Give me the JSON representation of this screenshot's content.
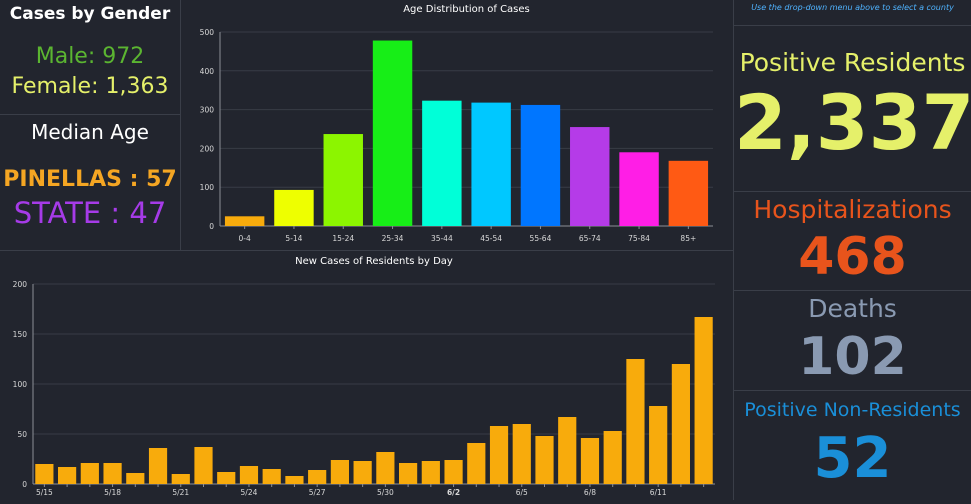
{
  "gender_panel": {
    "title": "Cases by Gender",
    "male_text": "Male: 972",
    "female_text": "Female: 1,363",
    "median_title": "Median Age",
    "pinellas_text": "PINELLAS : 57",
    "state_text": "STATE : 47"
  },
  "kpi": {
    "hint": "Use the drop-down menu above to select a county",
    "positive_label": "Positive Residents",
    "positive_value": "2,337",
    "hosp_label": "Hospitalizations",
    "hosp_value": "468",
    "deaths_label": "Deaths",
    "deaths_value": "102",
    "nonres_label": "Positive Non-Residents",
    "nonres_value": "52"
  },
  "colors": {
    "male": "#5bb531",
    "female": "#e5f06a",
    "pinellas": "#f5a623",
    "state": "#a63be8",
    "positive": "#e5f06a",
    "hosp": "#e8541c",
    "deaths": "#8a9ab2",
    "nonres": "#1a8fd8",
    "bar_daily": "#f8ab0c"
  },
  "chart_data": [
    {
      "type": "bar",
      "title": "Age Distribution of Cases",
      "categories": [
        "0-4",
        "5-14",
        "15-24",
        "25-34",
        "35-44",
        "45-54",
        "55-64",
        "65-74",
        "75-84",
        "85+"
      ],
      "values": [
        25,
        93,
        237,
        478,
        323,
        318,
        312,
        255,
        190,
        168
      ],
      "colors": [
        "#f8ab0c",
        "#eeff00",
        "#8cf500",
        "#17ee17",
        "#00ffd8",
        "#00c8ff",
        "#0076ff",
        "#b53be8",
        "#ff1ee6",
        "#ff5a14"
      ],
      "ylim": [
        0,
        500
      ],
      "yticks": [
        0,
        100,
        200,
        300,
        400,
        500
      ],
      "xlabel": "",
      "ylabel": ""
    },
    {
      "type": "bar",
      "title": "New Cases of Residents by Day",
      "x": [
        "5/15",
        "5/16",
        "5/17",
        "5/18",
        "5/19",
        "5/20",
        "5/21",
        "5/22",
        "5/23",
        "5/24",
        "5/25",
        "5/26",
        "5/27",
        "5/28",
        "5/29",
        "5/30",
        "5/31",
        "6/1",
        "6/2",
        "6/3",
        "6/4",
        "6/5",
        "6/6",
        "6/7",
        "6/8",
        "6/9",
        "6/10",
        "6/11",
        "6/12",
        "6/13"
      ],
      "values": [
        20,
        17,
        21,
        21,
        11,
        36,
        10,
        37,
        12,
        18,
        15,
        8,
        14,
        24,
        23,
        32,
        21,
        23,
        24,
        41,
        58,
        60,
        48,
        67,
        46,
        53,
        125,
        78,
        120,
        167
      ],
      "xtick_labels": [
        "5/15",
        "5/18",
        "5/21",
        "5/24",
        "5/27",
        "5/30",
        "6/2",
        "6/5",
        "6/8",
        "6/11"
      ],
      "bold_ticks": [
        "6/2"
      ],
      "ylim": [
        0,
        200
      ],
      "yticks": [
        0,
        50,
        100,
        150,
        200
      ],
      "xlabel": "",
      "ylabel": ""
    }
  ]
}
